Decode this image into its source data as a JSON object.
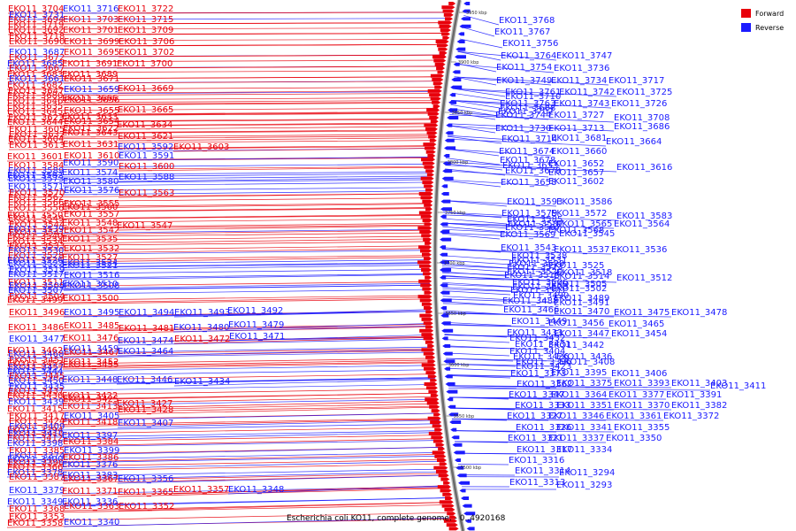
{
  "caption": "Escherichia coli KO11, complete genome. - 0..4920168",
  "legend": {
    "placement": "top-right",
    "items": [
      {
        "label": "Forward",
        "color": "#e8000b"
      },
      {
        "label": "Reverse",
        "color": "#1b1bff"
      }
    ]
  },
  "colors": {
    "forward": "#e8000b",
    "reverse": "#1b1bff",
    "backbone": "#777777"
  },
  "ticks": [
    "3950 kbp",
    "3900 kbp",
    "3850 kbp",
    "3800 kbp",
    "3750 kbp",
    "3700 kbp",
    "3650 kbp",
    "3600 kbp",
    "3550 kbp",
    "3500 kbp"
  ],
  "left_labels": [
    [
      "EKO11_3704",
      10,
      "f"
    ],
    [
      "EKO11_3716",
      10,
      "r"
    ],
    [
      "EKO11_3722",
      10,
      "f"
    ],
    [
      "EKO11_3694",
      22,
      "f"
    ],
    [
      "EKO11_3703",
      22,
      "f"
    ],
    [
      "EKO11_3715",
      22,
      "f"
    ],
    [
      "EKO11_3731",
      17,
      "r"
    ],
    [
      "EKO11_3692",
      34,
      "f"
    ],
    [
      "EKO11_3701",
      34,
      "f"
    ],
    [
      "EKO11_3709",
      34,
      "f"
    ],
    [
      "EKO11_3719",
      28,
      "f"
    ],
    [
      "EKO11_3690",
      47,
      "f"
    ],
    [
      "EKO11_3699",
      47,
      "f"
    ],
    [
      "EKO11_3706",
      47,
      "f"
    ],
    [
      "EKO11_3718",
      41,
      "f"
    ],
    [
      "EKO11_3687",
      59,
      "r"
    ],
    [
      "EKO11_3695",
      59,
      "f"
    ],
    [
      "EKO11_3702",
      59,
      "f"
    ],
    [
      "EKO11_3672",
      65,
      "f"
    ],
    [
      "EKO11_3685",
      72,
      "r"
    ],
    [
      "EKO11_3691",
      72,
      "f"
    ],
    [
      "EKO11_3700",
      72,
      "f"
    ],
    [
      "EKO11_3667",
      77,
      "f"
    ],
    [
      "EKO11_3683",
      84,
      "f"
    ],
    [
      "EKO11_3689",
      84,
      "f"
    ],
    [
      "EKO11_3661",
      89,
      "r"
    ],
    [
      "EKO11_3671",
      89,
      "f"
    ],
    [
      "EKO11_3682",
      96,
      "f"
    ],
    [
      "EKO11_3647",
      103,
      "f"
    ],
    [
      "EKO11_3659",
      101,
      "r"
    ],
    [
      "EKO11_3669",
      100,
      "f"
    ],
    [
      "EKO11_3680",
      108,
      "f"
    ],
    [
      "EKO11_3646",
      114,
      "f"
    ],
    [
      "EKO11_3656",
      113,
      "f"
    ],
    [
      "EKO11_3666",
      111,
      "f"
    ],
    [
      "EKO11_3635",
      120,
      "f"
    ],
    [
      "EKO11_3645",
      126,
      "f"
    ],
    [
      "EKO11_3655",
      125,
      "f"
    ],
    [
      "EKO11_3665",
      124,
      "f"
    ],
    [
      "EKO11_3623",
      133,
      "f"
    ],
    [
      "EKO11_3633",
      132,
      "f"
    ],
    [
      "EKO11_3644",
      138,
      "f"
    ],
    [
      "EKO11_3654",
      137,
      "f"
    ],
    [
      "EKO11_3605",
      146,
      "f"
    ],
    [
      "EKO11_3622",
      145,
      "f"
    ],
    [
      "EKO11_3634",
      141,
      "f"
    ],
    [
      "EKO11_3632",
      152,
      "f"
    ],
    [
      "EKO11_3643",
      150,
      "f"
    ],
    [
      "EKO11_3604",
      157,
      "f"
    ],
    [
      "EKO11_3621",
      154,
      "f"
    ],
    [
      "EKO11_3613",
      164,
      "f"
    ],
    [
      "EKO11_3631",
      163,
      "f"
    ],
    [
      "EKO11_3592",
      166,
      "r"
    ],
    [
      "EKO11_3603",
      166,
      "f"
    ],
    [
      "EKO11_3601",
      177,
      "f"
    ],
    [
      "EKO11_3610",
      176,
      "f"
    ],
    [
      "EKO11_3591",
      176,
      "r"
    ],
    [
      "EKO11_3584",
      187,
      "f"
    ],
    [
      "EKO11_3590",
      184,
      "r"
    ],
    [
      "EKO11_3589",
      193,
      "r"
    ],
    [
      "EKO11_3600",
      188,
      "f"
    ],
    [
      "EKO11_3574",
      195,
      "r"
    ],
    [
      "EKO11_3573",
      202,
      "r"
    ],
    [
      "EKO11_3582",
      198,
      "r"
    ],
    [
      "EKO11_3580",
      205,
      "r"
    ],
    [
      "EKO11_3588",
      200,
      "r"
    ],
    [
      "EKO11_3571",
      211,
      "r"
    ],
    [
      "EKO11_3570",
      218,
      "f"
    ],
    [
      "EKO11_3576",
      215,
      "r"
    ],
    [
      "EKO11_3563",
      218,
      "f"
    ],
    [
      "EKO11_3562",
      223,
      "f"
    ],
    [
      "EKO11_3566",
      229,
      "f"
    ],
    [
      "EKO11_3555",
      230,
      "f"
    ],
    [
      "EKO11_3556",
      235,
      "f"
    ],
    [
      "EKO11_3560",
      234,
      "f"
    ],
    [
      "EKO11_3550",
      243,
      "f"
    ],
    [
      "EKO11_3549",
      247,
      "f"
    ],
    [
      "EKO11_3557",
      242,
      "f"
    ],
    [
      "EKO11_3544",
      254,
      "f"
    ],
    [
      "EKO11_3548",
      252,
      "f"
    ],
    [
      "EKO11_3547",
      255,
      "f"
    ],
    [
      "EKO11_3539",
      259,
      "r"
    ],
    [
      "EKO11_3542",
      260,
      "f"
    ],
    [
      "EKO11_3541",
      263,
      "f"
    ],
    [
      "EKO11_3540",
      267,
      "f"
    ],
    [
      "EKO11_3535",
      270,
      "f"
    ],
    [
      "EKO11_3534",
      273,
      "f"
    ],
    [
      "EKO11_3533",
      278,
      "f"
    ],
    [
      "EKO11_3532",
      281,
      "f"
    ],
    [
      "EKO11_3530",
      283,
      "r"
    ],
    [
      "EKO11_3528",
      289,
      "f"
    ],
    [
      "EKO11_3527",
      291,
      "f"
    ],
    [
      "EKO11_3526",
      294,
      "r"
    ],
    [
      "EKO11_3522",
      298,
      "r"
    ],
    [
      "EKO11_3521",
      300,
      "r"
    ],
    [
      "EKO11_3524",
      297,
      "r"
    ],
    [
      "EKO11_3519",
      305,
      "r"
    ],
    [
      "EKO11_3517",
      310,
      "r"
    ],
    [
      "EKO11_3516",
      311,
      "r"
    ],
    [
      "EKO11_3511",
      319,
      "f"
    ],
    [
      "EKO11_3510",
      321,
      "r"
    ],
    [
      "EKO11_3509",
      323,
      "r"
    ],
    [
      "EKO11_3508",
      323,
      "r"
    ],
    [
      "EKO11_3507",
      328,
      "r"
    ],
    [
      "EKO11_3504",
      335,
      "f"
    ],
    [
      "EKO11_3500",
      337,
      "f"
    ],
    [
      "EKO11_3499",
      339,
      "f"
    ],
    [
      "EKO11_3496",
      353,
      "f"
    ],
    [
      "EKO11_3495",
      353,
      "r"
    ],
    [
      "EKO11_3494",
      353,
      "r"
    ],
    [
      "EKO11_3493",
      353,
      "r"
    ],
    [
      "EKO11_3492",
      351,
      "r"
    ],
    [
      "EKO11_3486",
      370,
      "f"
    ],
    [
      "EKO11_3485",
      368,
      "f"
    ],
    [
      "EKO11_3481",
      371,
      "f"
    ],
    [
      "EKO11_3480",
      370,
      "r"
    ],
    [
      "EKO11_3479",
      367,
      "r"
    ],
    [
      "EKO11_3477",
      383,
      "r"
    ],
    [
      "EKO11_3476",
      382,
      "f"
    ],
    [
      "EKO11_3474",
      385,
      "r"
    ],
    [
      "EKO11_3472",
      383,
      "f"
    ],
    [
      "EKO11_3471",
      380,
      "r"
    ],
    [
      "EKO11_3468",
      400,
      "r"
    ],
    [
      "EKO11_3467",
      398,
      "f"
    ],
    [
      "EKO11_3464",
      397,
      "r"
    ],
    [
      "EKO11_3462",
      396,
      "f"
    ],
    [
      "EKO11_3459",
      394,
      "r"
    ],
    [
      "EKO11_3457",
      415,
      "r"
    ],
    [
      "EKO11_3455",
      412,
      "f"
    ],
    [
      "EKO11_3453",
      411,
      "f"
    ],
    [
      "EKO11_3452",
      409,
      "f"
    ],
    [
      "EKO11_3451",
      407,
      "f"
    ],
    [
      "EKO11_3450",
      430,
      "r"
    ],
    [
      "EKO11_3448",
      429,
      "r"
    ],
    [
      "EKO11_3446",
      429,
      "r"
    ],
    [
      "EKO11_3445",
      425,
      "f"
    ],
    [
      "EKO11_3444",
      420,
      "r"
    ],
    [
      "EKO11_3435",
      437,
      "r"
    ],
    [
      "EKO11_3434",
      431,
      "r"
    ],
    [
      "EKO11_3437",
      442,
      "f"
    ],
    [
      "EKO11_3439",
      454,
      "r"
    ],
    [
      "EKO11_3438",
      447,
      "f"
    ],
    [
      "EKO11_3425",
      451,
      "f"
    ],
    [
      "EKO11_3422",
      447,
      "f"
    ],
    [
      "EKO11_3427",
      456,
      "f"
    ],
    [
      "EKO11_3415",
      462,
      "f"
    ],
    [
      "EKO11_3413",
      459,
      "f"
    ],
    [
      "EKO11_3428",
      463,
      "f"
    ],
    [
      "EKO11_3417",
      470,
      "f"
    ],
    [
      "EKO11_3405",
      470,
      "r"
    ],
    [
      "EKO11_3424",
      476,
      "f"
    ],
    [
      "EKO11_3418",
      477,
      "f"
    ],
    [
      "EKO11_3407",
      478,
      "r"
    ],
    [
      "EKO11_3409",
      482,
      "r"
    ],
    [
      "EKO11_3394",
      486,
      "f"
    ],
    [
      "EKO11_3410",
      490,
      "r"
    ],
    [
      "EKO11_3397",
      492,
      "r"
    ],
    [
      "EKO11_3412",
      495,
      "f"
    ],
    [
      "EKO11_3398",
      501,
      "r"
    ],
    [
      "EKO11_3384",
      499,
      "f"
    ],
    [
      "EKO11_3385",
      509,
      "f"
    ],
    [
      "EKO11_3399",
      509,
      "r"
    ],
    [
      "EKO11_3374",
      515,
      "r"
    ],
    [
      "EKO11_3400",
      519,
      "r"
    ],
    [
      "EKO11_3386",
      517,
      "f"
    ],
    [
      "EKO11_3390",
      523,
      "f"
    ],
    [
      "EKO11_3376",
      525,
      "r"
    ],
    [
      "EKO11_3366",
      528,
      "f"
    ],
    [
      "EKO11_3378",
      534,
      "r"
    ],
    [
      "EKO11_3387",
      539,
      "f"
    ],
    [
      "EKO11_3383",
      537,
      "r"
    ],
    [
      "EKO11_3367",
      541,
      "f"
    ],
    [
      "EKO11_3356",
      541,
      "r"
    ],
    [
      "EKO11_3379",
      554,
      "r"
    ],
    [
      "EKO11_3371",
      555,
      "f"
    ],
    [
      "EKO11_3365",
      556,
      "f"
    ],
    [
      "EKO11_3357",
      553,
      "f"
    ],
    [
      "EKO11_3348",
      553,
      "r"
    ],
    [
      "EKO11_3368",
      575,
      "f"
    ],
    [
      "EKO11_3363",
      572,
      "f"
    ],
    [
      "EKO11_3352",
      572,
      "f"
    ],
    [
      "EKO11_3349",
      567,
      "r"
    ],
    [
      "EKO11_3336",
      567,
      "r"
    ],
    [
      "EKO11_3358",
      591,
      "f"
    ],
    [
      "EKO11_3353",
      584,
      "f"
    ],
    [
      "EKO11_3340",
      590,
      "r"
    ]
  ],
  "right_labels": [
    [
      "EKO11_3768",
      23
    ],
    [
      "EKO11_3767",
      36
    ],
    [
      "EKO11_3756",
      49
    ],
    [
      "EKO11_3764",
      63
    ],
    [
      "EKO11_3747",
      63
    ],
    [
      "EKO11_3754",
      76
    ],
    [
      "EKO11_3736",
      77
    ],
    [
      "EKO11_3749",
      91
    ],
    [
      "EKO11_3734",
      91
    ],
    [
      "EKO11_3717",
      91
    ],
    [
      "EKO11_3761",
      104
    ],
    [
      "EKO11_3742",
      104
    ],
    [
      "EKO11_3725",
      104
    ],
    [
      "EKO11_3710",
      109
    ],
    [
      "EKO11_3763",
      117
    ],
    [
      "EKO11_3743",
      117
    ],
    [
      "EKO11_3726",
      117
    ],
    [
      "EKO11_3688",
      122
    ],
    [
      "EKO11_3744",
      130
    ],
    [
      "EKO11_3727",
      130
    ],
    [
      "EKO11_3708",
      133
    ],
    [
      "EKO11_3707",
      126
    ],
    [
      "EKO11_3730",
      145
    ],
    [
      "EKO11_3713",
      145
    ],
    [
      "EKO11_3686",
      143
    ],
    [
      "EKO11_3714",
      157
    ],
    [
      "EKO11_3681",
      156
    ],
    [
      "EKO11_3664",
      160
    ],
    [
      "EKO11_3674",
      171
    ],
    [
      "EKO11_3660",
      171
    ],
    [
      "EKO11_3678",
      181
    ],
    [
      "EKO11_3653",
      187
    ],
    [
      "EKO11_3652",
      185
    ],
    [
      "EKO11_3616",
      189
    ],
    [
      "EKO11_3679",
      193
    ],
    [
      "EKO11_3657",
      195
    ],
    [
      "EKO11_3658",
      206
    ],
    [
      "EKO11_3602",
      205
    ],
    [
      "EKO11_3593",
      228
    ],
    [
      "EKO11_3586",
      228
    ],
    [
      "EKO11_3579",
      241
    ],
    [
      "EKO11_3572",
      241
    ],
    [
      "EKO11_3583",
      244
    ],
    [
      "EKO11_3585",
      248
    ],
    [
      "EKO11_3587",
      253
    ],
    [
      "EKO11_3565",
      253
    ],
    [
      "EKO11_3564",
      253
    ],
    [
      "EKO11_3567",
      257
    ],
    [
      "EKO11_3568",
      260
    ],
    [
      "EKO11_3569",
      265
    ],
    [
      "EKO11_3545",
      264
    ],
    [
      "EKO11_3543",
      280
    ],
    [
      "EKO11_3537",
      282
    ],
    [
      "EKO11_3536",
      282
    ],
    [
      "EKO11_3538",
      289
    ],
    [
      "EKO11_3531",
      294
    ],
    [
      "EKO11_3529",
      298
    ],
    [
      "EKO11_3525",
      300
    ],
    [
      "EKO11_3523",
      302
    ],
    [
      "EKO11_3520",
      307
    ],
    [
      "EKO11_3518",
      308
    ],
    [
      "EKO11_3515",
      311
    ],
    [
      "EKO11_3514",
      312
    ],
    [
      "EKO11_3512",
      314
    ],
    [
      "EKO11_3506",
      319
    ],
    [
      "EKO11_3505",
      321
    ],
    [
      "EKO11_3503",
      324
    ],
    [
      "EKO11_3502",
      326
    ],
    [
      "EKO11_3501",
      328
    ],
    [
      "EKO11_3490",
      334
    ],
    [
      "EKO11_3489",
      337
    ],
    [
      "EKO11_3488",
      340
    ],
    [
      "EKO11_3491",
      342
    ],
    [
      "EKO11_3466",
      350
    ],
    [
      "EKO11_3470",
      352
    ],
    [
      "EKO11_3475",
      353
    ],
    [
      "EKO11_3478",
      353
    ],
    [
      "EKO11_3449",
      363
    ],
    [
      "EKO11_3456",
      365
    ],
    [
      "EKO11_3465",
      366
    ],
    [
      "EKO11_3433",
      376
    ],
    [
      "EKO11_3447",
      377
    ],
    [
      "EKO11_3454",
      377
    ],
    [
      "EKO11_3432",
      382
    ],
    [
      "EKO11_3431",
      389
    ],
    [
      "EKO11_3442",
      390
    ],
    [
      "EKO11_3404",
      397
    ],
    [
      "EKO11_3426",
      403
    ],
    [
      "EKO11_3436",
      403
    ],
    [
      "EKO11_3396",
      409
    ],
    [
      "EKO11_3408",
      409
    ],
    [
      "EKO11_3423",
      414
    ],
    [
      "EKO11_3373",
      422
    ],
    [
      "EKO11_3395",
      421
    ],
    [
      "EKO11_3406",
      422
    ],
    [
      "EKO11_3362",
      434
    ],
    [
      "EKO11_3375",
      433
    ],
    [
      "EKO11_3393",
      433
    ],
    [
      "EKO11_3403",
      433
    ],
    [
      "EKO11_3411",
      436
    ],
    [
      "EKO11_3347",
      446
    ],
    [
      "EKO11_3364",
      446
    ],
    [
      "EKO11_3377",
      446
    ],
    [
      "EKO11_3391",
      446
    ],
    [
      "EKO11_3333",
      458
    ],
    [
      "EKO11_3351",
      458
    ],
    [
      "EKO11_3370",
      458
    ],
    [
      "EKO11_3382",
      458
    ],
    [
      "EKO11_3327",
      470
    ],
    [
      "EKO11_3346",
      470
    ],
    [
      "EKO11_3361",
      470
    ],
    [
      "EKO11_3372",
      470
    ],
    [
      "EKO11_3326",
      483
    ],
    [
      "EKO11_3341",
      483
    ],
    [
      "EKO11_3355",
      483
    ],
    [
      "EKO11_3321",
      495
    ],
    [
      "EKO11_3337",
      495
    ],
    [
      "EKO11_3350",
      495
    ],
    [
      "EKO11_3317",
      508
    ],
    [
      "EKO11_3334",
      508
    ],
    [
      "EKO11_3316",
      520
    ],
    [
      "EKO11_3314",
      532
    ],
    [
      "EKO11_3294",
      534
    ],
    [
      "EKO11_3313",
      545
    ],
    [
      "EKO11_3293",
      548
    ]
  ]
}
